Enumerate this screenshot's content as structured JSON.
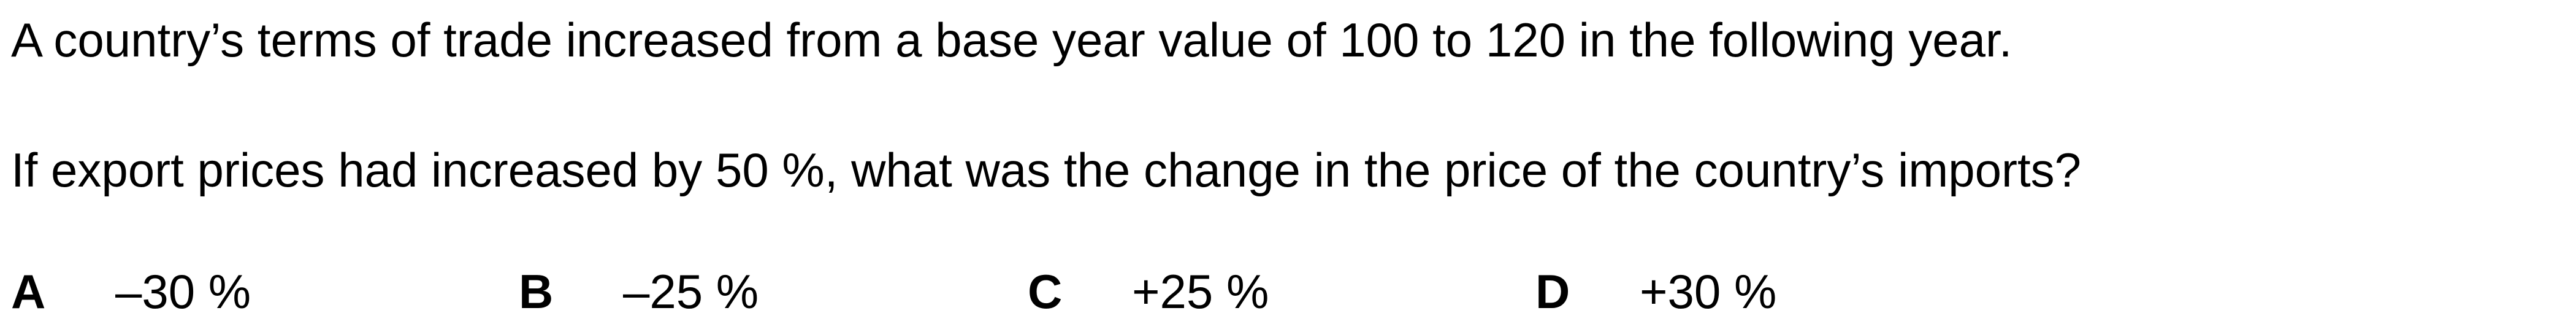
{
  "question": {
    "stem_line_1": "A country’s terms of trade increased from a base year value of 100 to 120 in the following year.",
    "stem_line_2": "If export prices had increased by 50 %, what was the change in the price of the country’s imports?",
    "options": [
      {
        "letter": "A",
        "value": "–30 %"
      },
      {
        "letter": "B",
        "value": "–25 %"
      },
      {
        "letter": "C",
        "value": "+25 %"
      },
      {
        "letter": "D",
        "value": "+30 %"
      }
    ]
  }
}
